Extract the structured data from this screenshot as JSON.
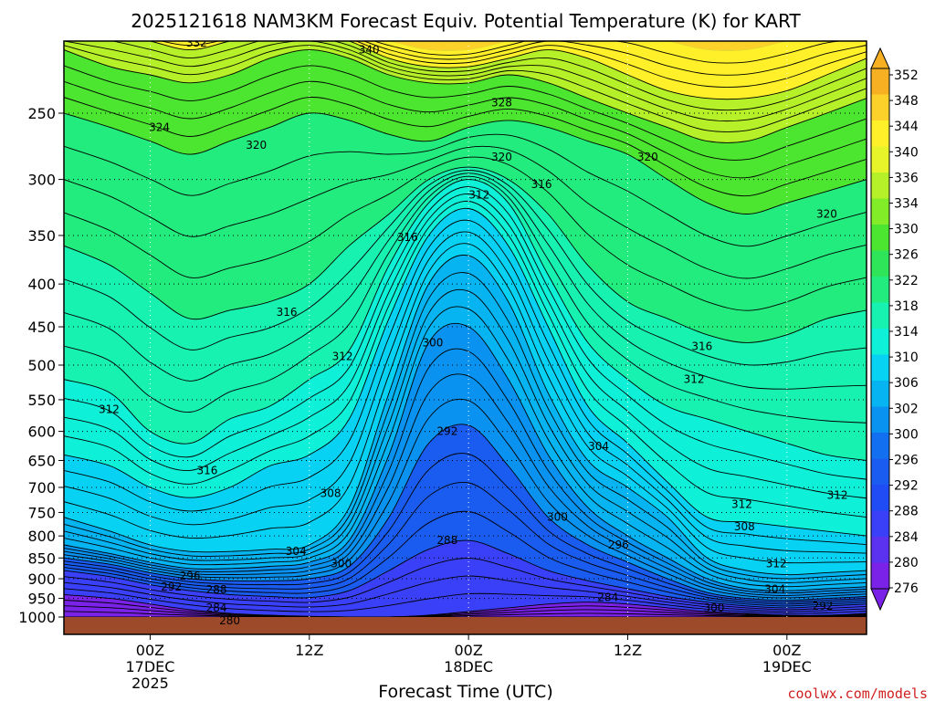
{
  "colors": {
    "ground": "#9c4a2a",
    "credit": "#d12020",
    "scale": [
      "#7a22e8",
      "#5a32f0",
      "#3a40f8",
      "#1f4cf5",
      "#1a5cf0",
      "#1270f0",
      "#0a92f0",
      "#06b4f2",
      "#08d2f4",
      "#0ef0d8",
      "#18f2b0",
      "#22ec7e",
      "#2ee458",
      "#4ce630",
      "#82ec28",
      "#b6f028",
      "#e8f42a",
      "#fff02a",
      "#fcd22a",
      "#f6b022"
    ]
  },
  "chart_data": {
    "type": "heatmap",
    "title": "2025121618 NAM3KM Forecast Equiv. Potential Temperature (K) for KART",
    "xlabel": "Forecast Time (UTC)",
    "credit": "coolwx.com/models",
    "y_axis": {
      "scale": "log-pressure",
      "range": [
        1000,
        200
      ],
      "ticks": [
        "250",
        "300",
        "350",
        "400",
        "450",
        "500",
        "550",
        "600",
        "650",
        "700",
        "750",
        "800",
        "850",
        "900",
        "950",
        "1000"
      ]
    },
    "x_axis": {
      "range_hours": [
        -6.5,
        54
      ],
      "ticks": [
        {
          "hour": 0,
          "line1": "00Z",
          "line2": "17DEC",
          "line3": "2025"
        },
        {
          "hour": 12,
          "line1": "12Z",
          "line2": "",
          "line3": ""
        },
        {
          "hour": 24,
          "line1": "00Z",
          "line2": "18DEC",
          "line3": ""
        },
        {
          "hour": 36,
          "line1": "12Z",
          "line2": "",
          "line3": ""
        },
        {
          "hour": 48,
          "line1": "00Z",
          "line2": "19DEC",
          "line3": ""
        }
      ]
    },
    "colorbar": {
      "labels": [
        "352",
        "348",
        "344",
        "340",
        "336",
        "334",
        "330",
        "326",
        "322",
        "318",
        "314",
        "310",
        "306",
        "302",
        "300",
        "296",
        "292",
        "288",
        "284",
        "280",
        "276"
      ]
    },
    "contour_labels": [
      {
        "text": "332",
        "hour": 3.5,
        "p": 206
      },
      {
        "text": "340",
        "hour": 16.5,
        "p": 210
      },
      {
        "text": "324",
        "hour": 0.7,
        "p": 260
      },
      {
        "text": "328",
        "hour": 26.5,
        "p": 243
      },
      {
        "text": "320",
        "hour": 8.0,
        "p": 273
      },
      {
        "text": "320",
        "hour": 26.5,
        "p": 282
      },
      {
        "text": "320",
        "hour": 37.5,
        "p": 282
      },
      {
        "text": "316",
        "hour": 29.5,
        "p": 304
      },
      {
        "text": "312",
        "hour": 24.8,
        "p": 313
      },
      {
        "text": "320",
        "hour": 51.0,
        "p": 330
      },
      {
        "text": "316",
        "hour": 19.4,
        "p": 352
      },
      {
        "text": "316",
        "hour": 10.3,
        "p": 432
      },
      {
        "text": "300",
        "hour": 21.3,
        "p": 470
      },
      {
        "text": "316",
        "hour": 41.6,
        "p": 475
      },
      {
        "text": "312",
        "hour": 14.5,
        "p": 488
      },
      {
        "text": "312",
        "hour": 41.0,
        "p": 520
      },
      {
        "text": "312",
        "hour": -3.1,
        "p": 565
      },
      {
        "text": "292",
        "hour": 22.4,
        "p": 600
      },
      {
        "text": "304",
        "hour": 33.8,
        "p": 625
      },
      {
        "text": "316",
        "hour": 4.3,
        "p": 668
      },
      {
        "text": "308",
        "hour": 13.6,
        "p": 712
      },
      {
        "text": "312",
        "hour": 44.6,
        "p": 733
      },
      {
        "text": "312",
        "hour": 51.8,
        "p": 715
      },
      {
        "text": "300",
        "hour": 30.7,
        "p": 760
      },
      {
        "text": "308",
        "hour": 44.8,
        "p": 780
      },
      {
        "text": "288",
        "hour": 22.4,
        "p": 810
      },
      {
        "text": "296",
        "hour": 35.3,
        "p": 820
      },
      {
        "text": "304",
        "hour": 11.0,
        "p": 835
      },
      {
        "text": "300",
        "hour": 14.4,
        "p": 863
      },
      {
        "text": "312",
        "hour": 47.2,
        "p": 863
      },
      {
        "text": "296",
        "hour": 3.0,
        "p": 893
      },
      {
        "text": "292",
        "hour": 1.6,
        "p": 920
      },
      {
        "text": "304",
        "hour": 47.1,
        "p": 926
      },
      {
        "text": "288",
        "hour": 5.0,
        "p": 928
      },
      {
        "text": "284",
        "hour": 34.5,
        "p": 948
      },
      {
        "text": "284",
        "hour": 5.0,
        "p": 975
      },
      {
        "text": "300",
        "hour": 42.5,
        "p": 975
      },
      {
        "text": "292",
        "hour": 50.7,
        "p": 970
      },
      {
        "text": "280",
        "hour": 6.0,
        "p": 1010
      }
    ]
  }
}
